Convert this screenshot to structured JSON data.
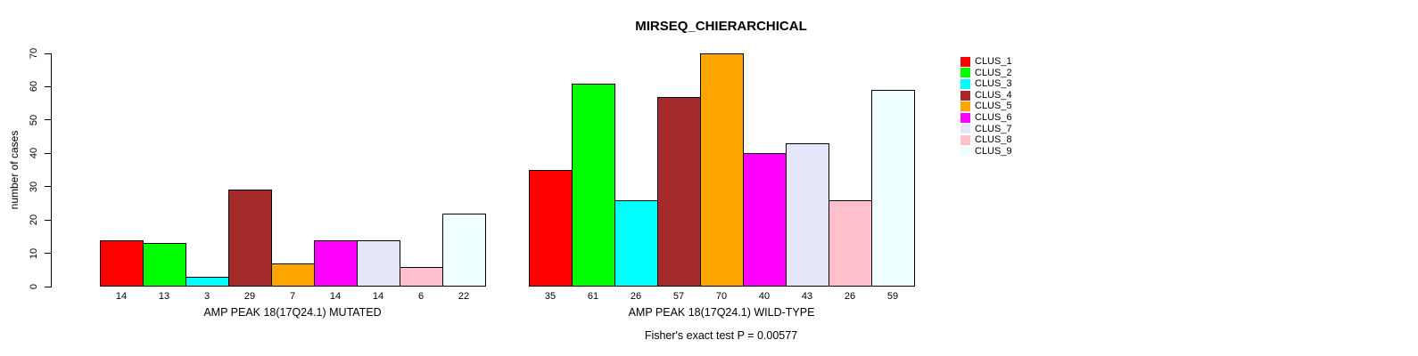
{
  "chart_data": {
    "type": "bar",
    "title": "MIRSEQ_CHIERARCHICAL",
    "ylabel": "number of cases",
    "ylim": [
      0,
      70
    ],
    "yticks": [
      0,
      10,
      20,
      30,
      40,
      50,
      60,
      70
    ],
    "grid": false,
    "legend_position": "right",
    "bar_border_color": "#000000",
    "categories": [
      "AMP PEAK 18(17Q24.1) MUTATED",
      "AMP PEAK 18(17Q24.1) WILD-TYPE"
    ],
    "series": [
      {
        "name": "CLUS_1",
        "color": "#FF0000",
        "values": [
          14,
          35
        ]
      },
      {
        "name": "CLUS_2",
        "color": "#00FF00",
        "values": [
          13,
          61
        ]
      },
      {
        "name": "CLUS_3",
        "color": "#00FFFF",
        "values": [
          3,
          26
        ]
      },
      {
        "name": "CLUS_4",
        "color": "#A52A2A",
        "values": [
          29,
          57
        ]
      },
      {
        "name": "CLUS_5",
        "color": "#FFA500",
        "values": [
          7,
          70
        ]
      },
      {
        "name": "CLUS_6",
        "color": "#FF00FF",
        "values": [
          14,
          40
        ]
      },
      {
        "name": "CLUS_7",
        "color": "#E6E6FA",
        "values": [
          14,
          43
        ]
      },
      {
        "name": "CLUS_8",
        "color": "#FFC0CB",
        "values": [
          6,
          26
        ]
      },
      {
        "name": "CLUS_9",
        "color": "#F0FFFF",
        "values": [
          22,
          59
        ]
      }
    ],
    "caption": "Fisher's exact test P = 0.00577"
  }
}
